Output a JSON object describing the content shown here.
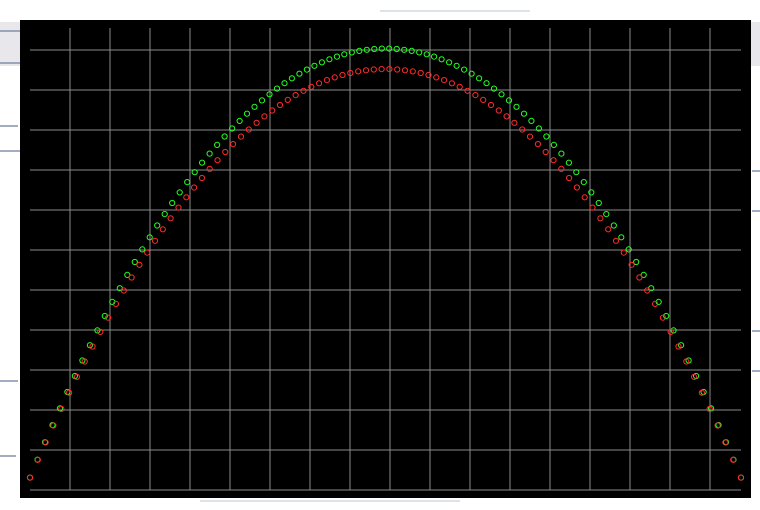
{
  "chart_data": {
    "type": "scatter",
    "title": "",
    "xlabel": "",
    "ylabel": "",
    "xlim": [
      0,
      1
    ],
    "ylim": [
      -0.05,
      1.12
    ],
    "grid": true,
    "legend": "none",
    "colors": {
      "background": "#000000",
      "grid": "#8a8a8a",
      "series_a": "#22ff22",
      "series_b": "#ff2a2a"
    },
    "series": [
      {
        "color": "#22ff22",
        "marker": "circle-open",
        "peak": 1.05,
        "n": 96
      },
      {
        "color": "#ff2a2a",
        "marker": "circle-open",
        "peak": 1.0,
        "n": 92
      }
    ]
  }
}
